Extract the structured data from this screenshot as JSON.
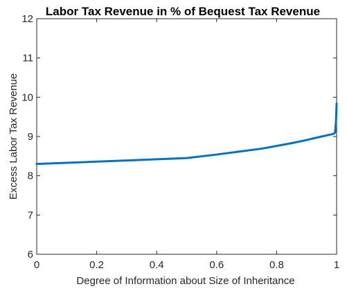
{
  "chart_data": {
    "type": "line",
    "title": "Labor Tax Revenue in % of Bequest Tax Revenue",
    "xlabel": "Degree of Information about Size of Inheritance",
    "ylabel": "Excess Labor Tax Revenue",
    "xlim": [
      0,
      1
    ],
    "ylim": [
      6,
      12
    ],
    "xticks": [
      0,
      0.2,
      0.4,
      0.6,
      0.8,
      1
    ],
    "xtick_labels": [
      "0",
      "0.2",
      "0.4",
      "0.6",
      "0.8",
      "1"
    ],
    "yticks": [
      6,
      7,
      8,
      9,
      10,
      11,
      12
    ],
    "ytick_labels": [
      "6",
      "7",
      "8",
      "9",
      "10",
      "11",
      "12"
    ],
    "grid": false,
    "series": [
      {
        "color": "#0072BD",
        "x": [
          0,
          0.1,
          0.2,
          0.3,
          0.4,
          0.5,
          0.6,
          0.7,
          0.75,
          0.8,
          0.85,
          0.9,
          0.95,
          0.98,
          0.99,
          0.995,
          0.998,
          1.0
        ],
        "y": [
          8.3,
          8.33,
          8.36,
          8.39,
          8.42,
          8.45,
          8.54,
          8.64,
          8.69,
          8.76,
          8.83,
          8.91,
          9.0,
          9.05,
          9.07,
          9.1,
          9.4,
          9.84
        ]
      }
    ]
  }
}
